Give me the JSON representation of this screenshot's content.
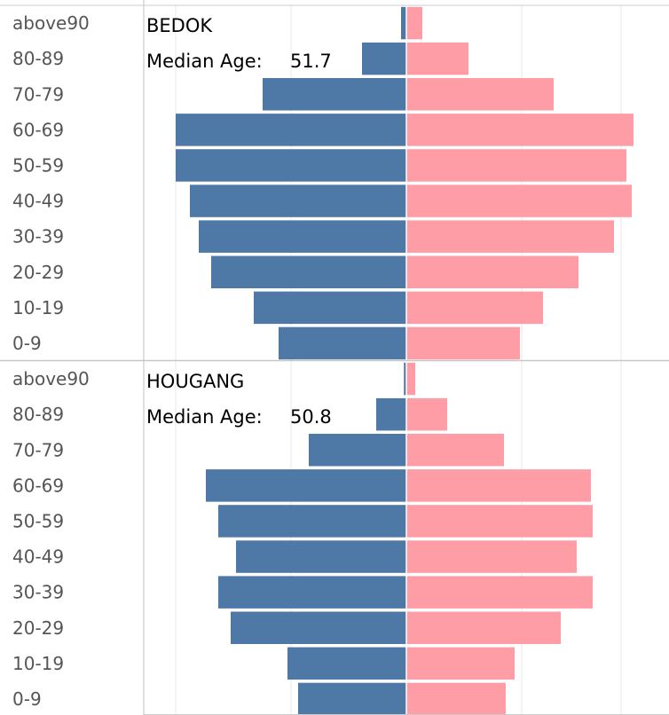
{
  "chart_data": [
    {
      "type": "bar",
      "title": "BEDOK",
      "median_label": "Median Age:",
      "median_value": "51.7",
      "categories": [
        "above90",
        "80-89",
        "70-79",
        "60-69",
        "50-59",
        "40-49",
        "30-39",
        "20-29",
        "10-19",
        "0-9"
      ],
      "series": [
        {
          "color": "#4e79a7",
          "values": [
            0.15,
            1.25,
            4.05,
            6.5,
            6.5,
            6.1,
            5.85,
            5.5,
            4.3,
            3.6
          ]
        },
        {
          "color": "#ff9da7",
          "values": [
            0.45,
            1.75,
            4.15,
            6.4,
            6.2,
            6.35,
            5.85,
            4.85,
            3.85,
            3.2
          ]
        }
      ],
      "xlim": [
        -7.35,
        7.35
      ],
      "grid": true
    },
    {
      "type": "bar",
      "title": "HOUGANG",
      "median_label": "Median Age:",
      "median_value": "50.8",
      "categories": [
        "above90",
        "80-89",
        "70-79",
        "60-69",
        "50-59",
        "40-49",
        "30-39",
        "20-29",
        "10-19",
        "0-9"
      ],
      "series": [
        {
          "color": "#4e79a7",
          "values": [
            0.07,
            0.85,
            2.75,
            5.65,
            5.3,
            4.8,
            5.3,
            4.95,
            3.35,
            3.05
          ]
        },
        {
          "color": "#ff9da7",
          "values": [
            0.25,
            1.15,
            2.75,
            5.2,
            5.25,
            4.8,
            5.25,
            4.35,
            3.05,
            2.8
          ]
        }
      ],
      "xlim": [
        -7.35,
        7.35
      ],
      "grid": true
    }
  ]
}
